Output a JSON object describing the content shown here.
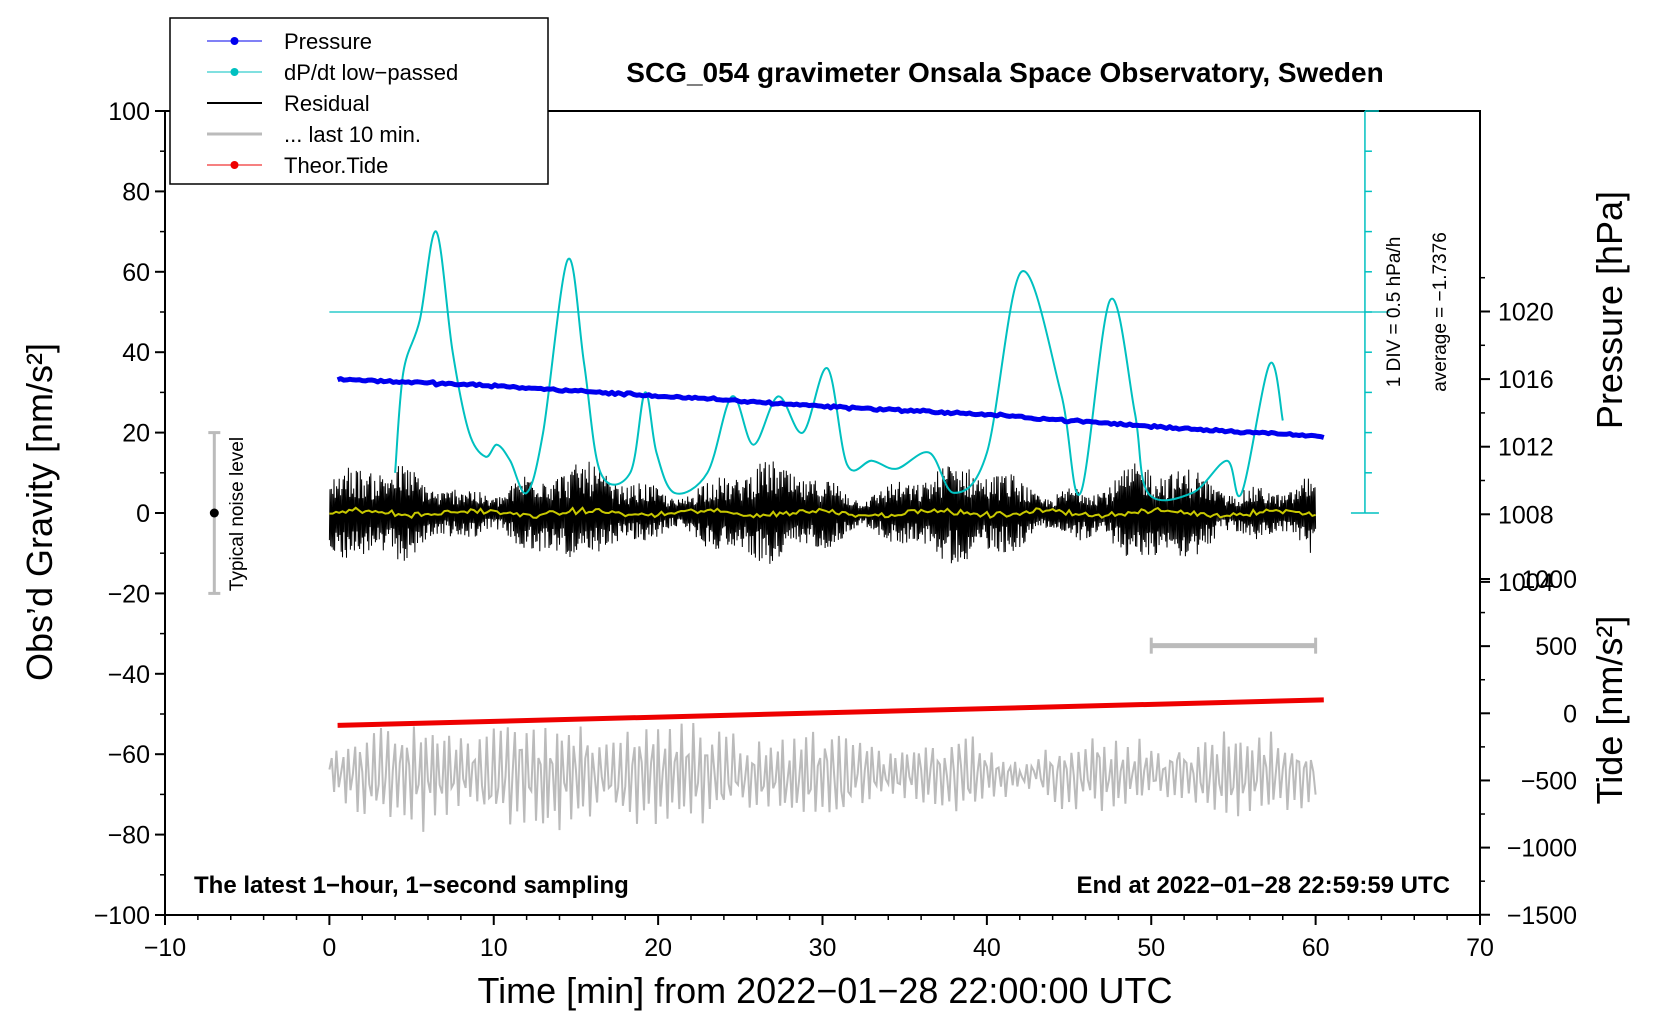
{
  "chart_data": {
    "type": "line",
    "title": "SCG_054 gravimeter Onsala Space Observatory, Sweden",
    "xlabel": "Time [min] from 2022−01−28 22:00:00 UTC",
    "ylabel": "Obs’d Gravity [nm/s²]",
    "xlim": [
      -10,
      70
    ],
    "ylim": [
      -100,
      100
    ],
    "x_ticks": [
      "−10",
      "0",
      "10",
      "20",
      "30",
      "40",
      "50",
      "60",
      "70"
    ],
    "y_ticks": [
      "−100",
      "−80",
      "−60",
      "−40",
      "−20",
      "0",
      "20",
      "40",
      "60",
      "80",
      "100"
    ],
    "pressure_axis": {
      "label": "Pressure [hPa]",
      "ticks": [
        "1004",
        "1008",
        "1012",
        "1016",
        "1020"
      ],
      "tick_values": [
        1004,
        1008,
        1012,
        1016,
        1020
      ]
    },
    "tide_axis": {
      "label": "Tide [nm/s²]",
      "ticks": [
        "1000",
        "500",
        "0",
        "−500",
        "−1000",
        "−1500"
      ],
      "tick_values": [
        1000,
        500,
        0,
        -500,
        -1000,
        -1500
      ]
    },
    "legend": [
      {
        "label": "Pressure",
        "color": "#0000ee",
        "marker": true
      },
      {
        "label": "dP/dt low−passed",
        "color": "#00c0c0",
        "marker": true
      },
      {
        "label": "Residual",
        "color": "#000000",
        "marker": false
      },
      {
        "label": "... last 10 min.",
        "color": "#bbbbbb",
        "marker": false
      },
      {
        "label": "Theor.Tide",
        "color": "#ee0000",
        "marker": true
      }
    ],
    "series": [
      {
        "name": "Pressure",
        "color": "#0000ee",
        "axis": "pressure_hPa",
        "x": [
          0.5,
          10,
          20,
          30,
          40,
          50,
          60.5
        ],
        "values": [
          1016.0,
          1015.6,
          1015.0,
          1014.4,
          1013.9,
          1013.2,
          1012.6
        ]
      },
      {
        "name": "dP/dt low-passed",
        "color": "#00c0c0",
        "axis": "gravity_units",
        "x": [
          4,
          4.5,
          5.5,
          6.5,
          7.5,
          8.5,
          9.5,
          10.2,
          11,
          12,
          13,
          14.5,
          15.5,
          16.5,
          18.3,
          19.2,
          19.9,
          21,
          23,
          24.5,
          25.8,
          27.3,
          28.8,
          30.3,
          31.5,
          33,
          34.5,
          36.5,
          38,
          40,
          42.1,
          44.5,
          45.7,
          47.5,
          49,
          49.8,
          52.5,
          54.6,
          55.5,
          57.2,
          58
        ],
        "values": [
          10,
          35,
          48,
          70,
          40,
          20,
          14,
          17,
          13,
          5,
          20,
          63,
          37,
          10,
          10,
          30,
          15,
          5,
          10,
          29,
          17,
          29,
          20,
          36,
          12,
          13,
          11,
          15,
          5,
          15,
          60,
          30,
          5,
          53,
          25,
          5,
          5,
          13,
          5,
          37,
          23
        ]
      },
      {
        "name": "Residual",
        "color": "#000000",
        "axis": "gravity_units",
        "x_range": [
          0,
          60
        ],
        "mean": 0.0,
        "typical_amplitude": 10
      },
      {
        "name": "Residual mean",
        "color": "#c8c800",
        "axis": "gravity_units",
        "x_range": [
          0,
          60
        ],
        "mean": 0.0
      },
      {
        "name": "... last 10 min.",
        "color": "#bbbbbb",
        "axis": "gravity_units",
        "x_range": [
          0,
          60
        ],
        "mean": -65,
        "typical_amplitude": 10
      },
      {
        "name": "Theor.Tide",
        "color": "#ee0000",
        "axis": "tide_nm_s2",
        "x": [
          0.5,
          60.5
        ],
        "values": [
          -90,
          100
        ]
      }
    ],
    "pressure_reference_line": 50,
    "dpdt_scale_bar": {
      "x": 63,
      "y_from": 0,
      "y_to": 100,
      "divisions": 10
    },
    "dpdt_scale_label": "1 DIV = 0.5 hPa/h",
    "dpdt_average_label": "average = −1.7376",
    "noise_bar": {
      "x": -7,
      "center": 0,
      "half_range": 20,
      "label": "Typical noise level"
    },
    "scale_segment": {
      "x_from": 50,
      "x_to": 60,
      "y": -33
    },
    "footnote_left": "The latest 1−hour, 1−second sampling",
    "footnote_right": "End at 2022−01−28 22:59:59 UTC"
  }
}
